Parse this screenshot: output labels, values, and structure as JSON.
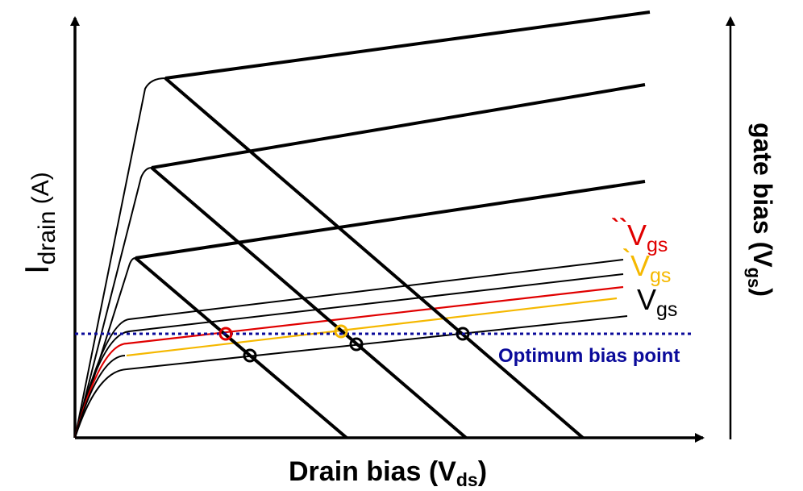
{
  "axes": {
    "y_left_label_main": "I",
    "y_left_label_sub": "drain",
    "y_left_label_unit": " (A)",
    "x_label_main": "Drain bias (V",
    "x_label_sub": "ds",
    "x_label_close": ")",
    "y_right_label_main": "gate bias (V",
    "y_right_label_sub": "gs",
    "y_right_label_close": ")"
  },
  "legend": [
    {
      "prefix": "``",
      "main": "V",
      "sub": "gs",
      "color": "#e00000"
    },
    {
      "prefix": "`",
      "main": "V",
      "sub": "gs",
      "color": "#f5b800"
    },
    {
      "prefix": "",
      "main": "V",
      "sub": "gs",
      "color": "#000000"
    }
  ],
  "annotation": {
    "text": "Optimum bias point",
    "color": "#0a0a9a"
  },
  "colors": {
    "axis": "#000000",
    "curve": "#000000",
    "red": "#e00000",
    "yellow": "#f5b800",
    "blue": "#0a0a9a"
  }
}
